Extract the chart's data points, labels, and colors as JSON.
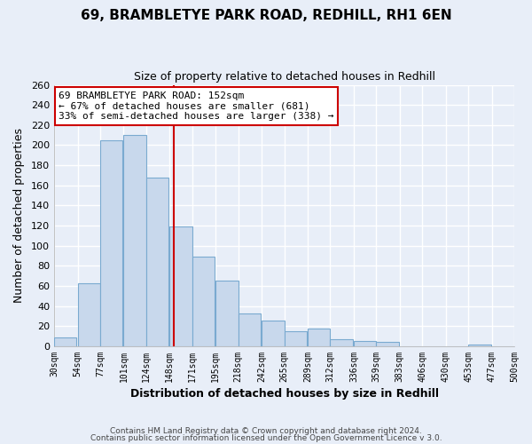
{
  "title": "69, BRAMBLETYE PARK ROAD, REDHILL, RH1 6EN",
  "subtitle": "Size of property relative to detached houses in Redhill",
  "xlabel": "Distribution of detached houses by size in Redhill",
  "ylabel": "Number of detached properties",
  "bar_left_edges": [
    30,
    54,
    77,
    101,
    124,
    148,
    171,
    195,
    218,
    242,
    265,
    289,
    312,
    336,
    359,
    383,
    406,
    430,
    453,
    477
  ],
  "bar_heights": [
    9,
    63,
    205,
    210,
    168,
    119,
    89,
    65,
    33,
    26,
    15,
    18,
    7,
    5,
    4,
    0,
    0,
    0,
    2,
    0
  ],
  "bin_width": 23,
  "tick_labels": [
    "30sqm",
    "54sqm",
    "77sqm",
    "101sqm",
    "124sqm",
    "148sqm",
    "171sqm",
    "195sqm",
    "218sqm",
    "242sqm",
    "265sqm",
    "289sqm",
    "312sqm",
    "336sqm",
    "359sqm",
    "383sqm",
    "406sqm",
    "430sqm",
    "453sqm",
    "477sqm",
    "500sqm"
  ],
  "bar_color": "#c8d8ec",
  "bar_edge_color": "#7aaad0",
  "property_line_x": 152,
  "property_line_color": "#cc0000",
  "ylim": [
    0,
    260
  ],
  "yticks": [
    0,
    20,
    40,
    60,
    80,
    100,
    120,
    140,
    160,
    180,
    200,
    220,
    240,
    260
  ],
  "annotation_title": "69 BRAMBLETYE PARK ROAD: 152sqm",
  "annotation_line1": "← 67% of detached houses are smaller (681)",
  "annotation_line2": "33% of semi-detached houses are larger (338) →",
  "annotation_box_color": "#ffffff",
  "annotation_box_edge": "#cc0000",
  "footnote1": "Contains HM Land Registry data © Crown copyright and database right 2024.",
  "footnote2": "Contains public sector information licensed under the Open Government Licence v 3.0.",
  "background_color": "#e8eef8",
  "plot_bg_color": "#e8eef8",
  "grid_color": "#ffffff",
  "xlim_left": 30,
  "xlim_right": 500
}
